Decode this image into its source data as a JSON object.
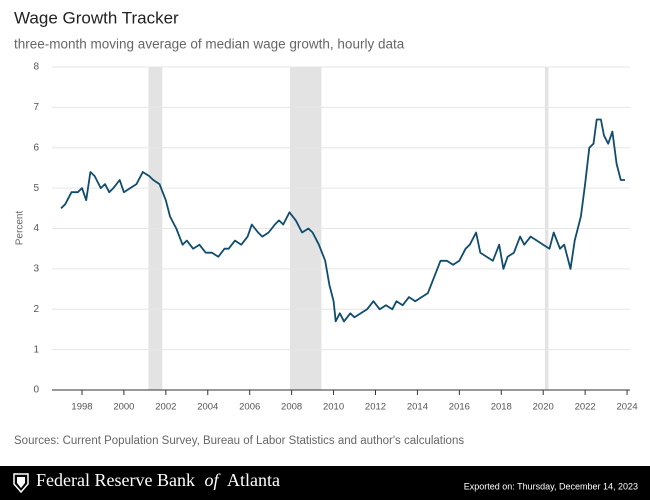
{
  "chart_data": {
    "type": "line",
    "title": "Wage Growth Tracker",
    "subtitle": "three-month moving average of median wage growth, hourly data",
    "y_label": "Percent",
    "source": "Sources: Current Population Survey, Bureau of Labor Statistics and author's calculations",
    "color": "#0f4c6e",
    "recession_color": "#e3e3e3",
    "grid": true,
    "recessions": [
      [
        2001.17,
        2001.83
      ],
      [
        2007.92,
        2009.42
      ],
      [
        2020.08,
        2020.25
      ]
    ],
    "xlim": [
      1996.57,
      2024.14
    ],
    "xticks": [
      1998,
      2000,
      2002,
      2004,
      2006,
      2008,
      2010,
      2012,
      2014,
      2016,
      2018,
      2020,
      2022,
      2024
    ],
    "ylim": [
      0,
      8
    ],
    "yticks": [
      0,
      1,
      2,
      3,
      4,
      5,
      6,
      7,
      8
    ],
    "x": [
      1997.0,
      1997.2,
      1997.5,
      1997.8,
      1998.0,
      1998.2,
      1998.4,
      1998.6,
      1998.9,
      1999.1,
      1999.3,
      1999.5,
      1999.8,
      2000.0,
      2000.3,
      2000.6,
      2000.9,
      2001.2,
      2001.4,
      2001.7,
      2002.0,
      2002.2,
      2002.5,
      2002.8,
      2003.0,
      2003.3,
      2003.6,
      2003.9,
      2004.2,
      2004.5,
      2004.8,
      2005.0,
      2005.3,
      2005.6,
      2005.9,
      2006.1,
      2006.4,
      2006.6,
      2006.9,
      2007.2,
      2007.4,
      2007.6,
      2007.9,
      2008.2,
      2008.5,
      2008.8,
      2009.0,
      2009.3,
      2009.6,
      2009.8,
      2010.0,
      2010.1,
      2010.3,
      2010.5,
      2010.8,
      2011.0,
      2011.3,
      2011.6,
      2011.9,
      2012.2,
      2012.5,
      2012.8,
      2013.0,
      2013.3,
      2013.6,
      2013.9,
      2014.2,
      2014.5,
      2014.8,
      2015.1,
      2015.4,
      2015.7,
      2016.0,
      2016.3,
      2016.5,
      2016.8,
      2017.0,
      2017.3,
      2017.6,
      2017.9,
      2018.1,
      2018.3,
      2018.6,
      2018.9,
      2019.1,
      2019.4,
      2019.7,
      2020.0,
      2020.3,
      2020.5,
      2020.8,
      2021.0,
      2021.3,
      2021.5,
      2021.8,
      2022.0,
      2022.2,
      2022.4,
      2022.55,
      2022.75,
      2022.9,
      2023.1,
      2023.3,
      2023.5,
      2023.7,
      2023.9
    ],
    "values": [
      4.5,
      4.6,
      4.9,
      4.9,
      5.0,
      4.7,
      5.4,
      5.3,
      5.0,
      5.1,
      4.9,
      5.0,
      5.2,
      4.9,
      5.0,
      5.1,
      5.4,
      5.3,
      5.2,
      5.1,
      4.7,
      4.3,
      4.0,
      3.6,
      3.7,
      3.5,
      3.6,
      3.4,
      3.4,
      3.3,
      3.5,
      3.5,
      3.7,
      3.6,
      3.8,
      4.1,
      3.9,
      3.8,
      3.9,
      4.1,
      4.2,
      4.1,
      4.4,
      4.2,
      3.9,
      4.0,
      3.9,
      3.6,
      3.2,
      2.6,
      2.2,
      1.7,
      1.9,
      1.7,
      1.9,
      1.8,
      1.9,
      2.0,
      2.2,
      2.0,
      2.1,
      2.0,
      2.2,
      2.1,
      2.3,
      2.2,
      2.3,
      2.4,
      2.8,
      3.2,
      3.2,
      3.1,
      3.2,
      3.5,
      3.6,
      3.9,
      3.4,
      3.3,
      3.2,
      3.6,
      3.0,
      3.3,
      3.4,
      3.8,
      3.6,
      3.8,
      3.7,
      3.6,
      3.5,
      3.9,
      3.5,
      3.6,
      3.0,
      3.7,
      4.3,
      5.1,
      6.0,
      6.1,
      6.7,
      6.7,
      6.3,
      6.1,
      6.4,
      5.6,
      5.2,
      5.2
    ]
  },
  "footer": {
    "brand_before": "Federal Reserve Bank",
    "brand_italic": "of",
    "brand_after": "Atlanta",
    "exported": "Exported on: Thursday, December 14, 2023"
  }
}
